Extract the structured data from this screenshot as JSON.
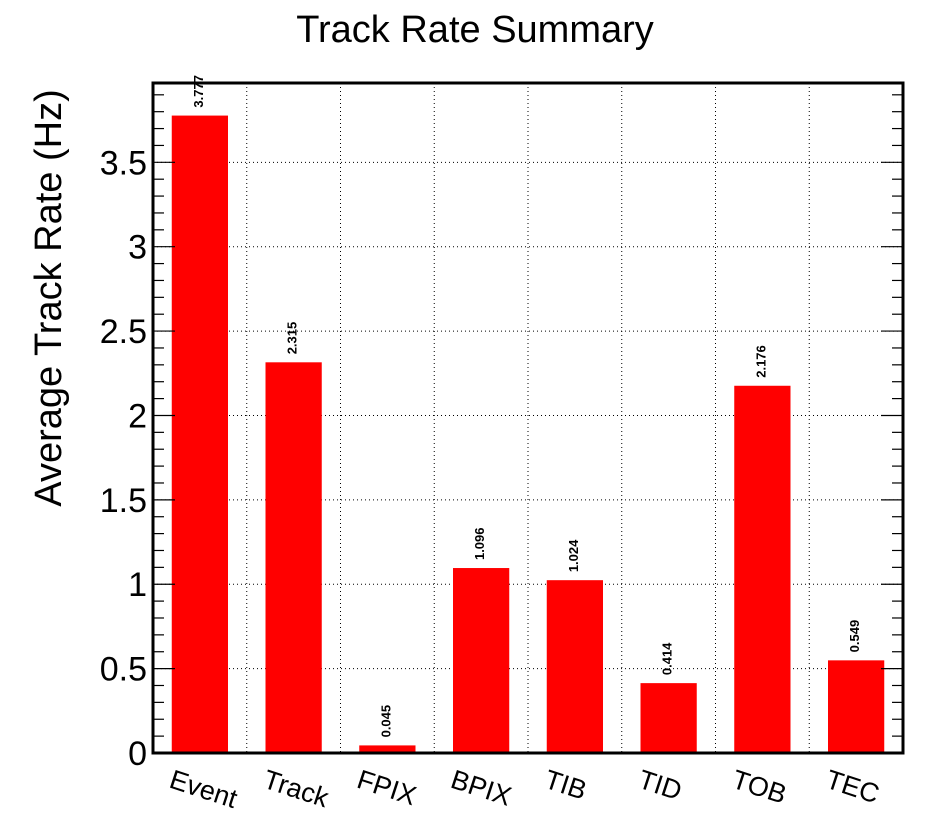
{
  "chart_data": {
    "type": "bar",
    "title": "Track Rate Summary",
    "xlabel": "",
    "ylabel": "Average Track Rate (Hz)",
    "categories": [
      "Event",
      "Track",
      "FPIX",
      "BPIX",
      "TIB",
      "TID",
      "TOB",
      "TEC"
    ],
    "values": [
      3.777,
      2.315,
      0.045,
      1.096,
      1.024,
      0.414,
      2.176,
      0.549
    ],
    "value_labels": [
      "3.777",
      "2.315",
      "0.045",
      "1.096",
      "1.024",
      "0.414",
      "2.176",
      "0.549"
    ],
    "ylim": [
      0,
      3.97
    ],
    "yticks": [
      0,
      0.5,
      1,
      1.5,
      2,
      2.5,
      3,
      3.5
    ],
    "ytick_labels": [
      "0",
      "0.5",
      "1",
      "1.5",
      "2",
      "2.5",
      "3",
      "3.5"
    ],
    "bar_color": "#ff0000",
    "grid": true,
    "legend": "none"
  }
}
